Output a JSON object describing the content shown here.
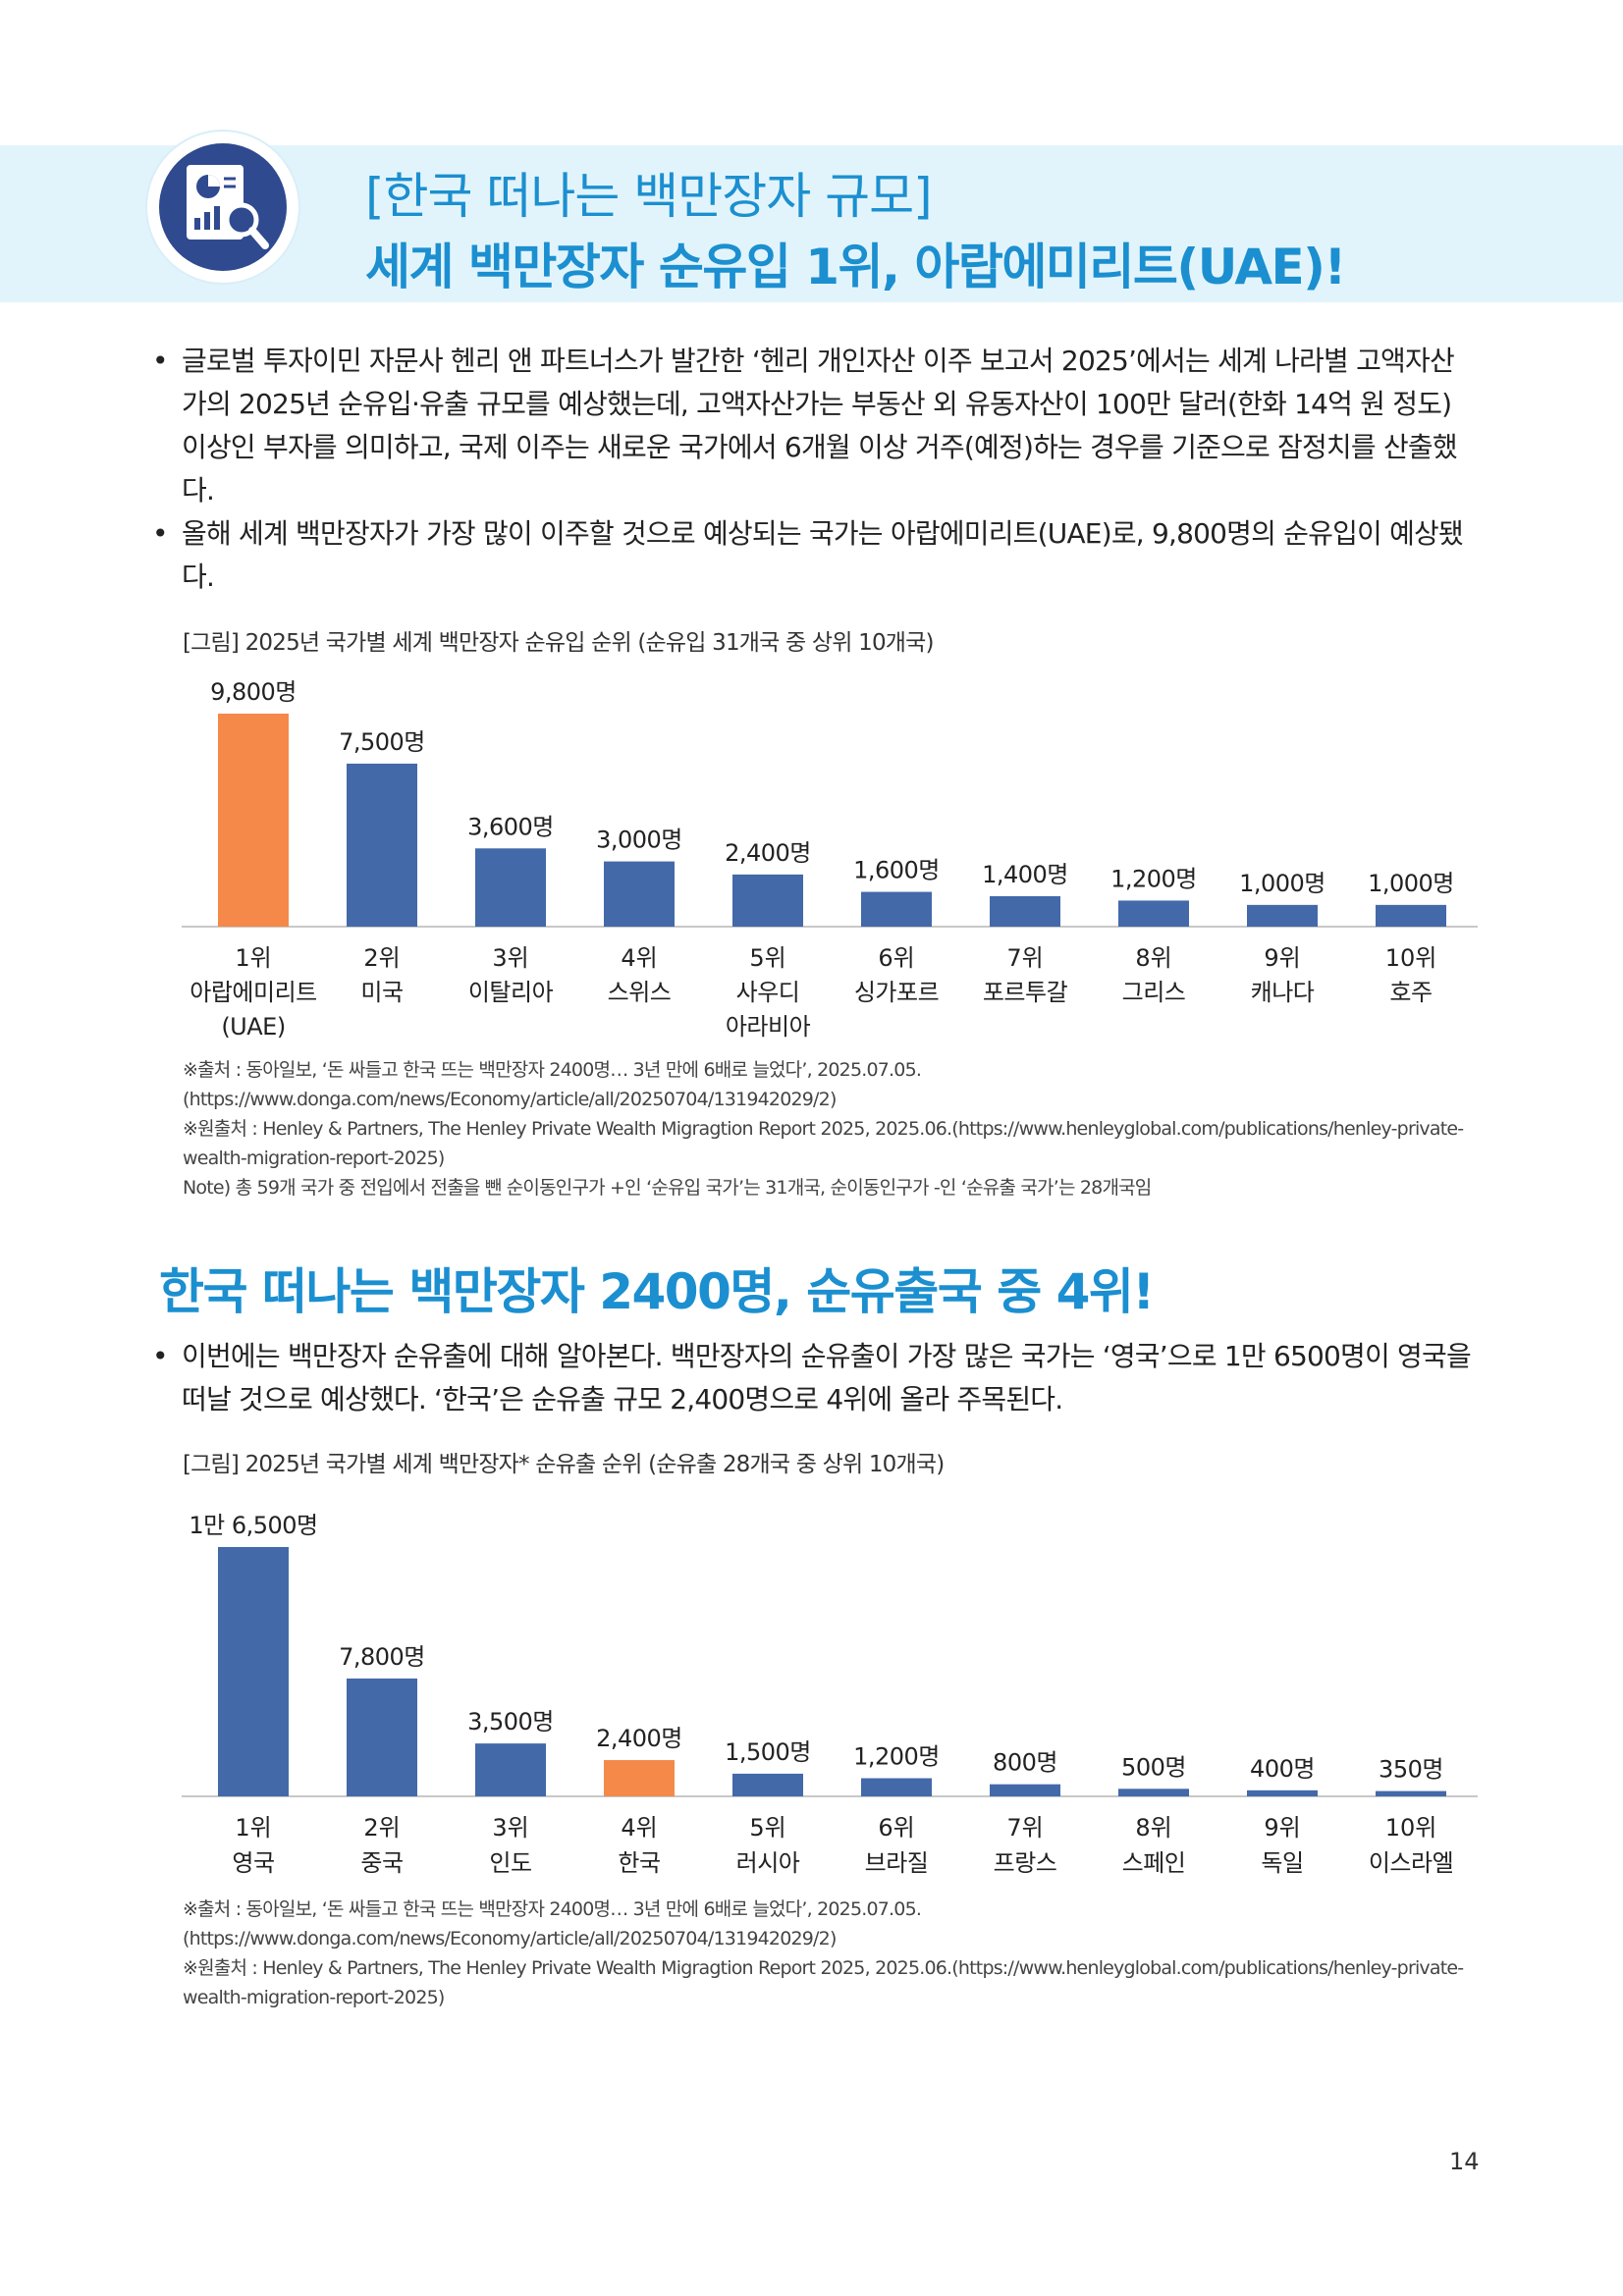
{
  "header": {
    "title_line1": "[한국 떠나는 백만장자 규모]",
    "title_line2": "세계 백만장자 순유입 1위, 아랍에미리트(UAE)!",
    "icon": "chart-magnifier-icon"
  },
  "bullets_top": [
    "글로벌 투자이민 자문사 헨리 앤 파트너스가 발간한 ‘헨리 개인자산 이주 보고서 2025’에서는 세계 나라별 고액자산가의 2025년 순유입·유출 규모를 예상했는데, 고액자산가는 부동산 외 유동자산이 100만 달러(한화 14억 원 정도) 이상인 부자를 의미하고, 국제 이주는 새로운 국가에서 6개월 이상 거주(예정)하는 경우를 기준으로 잠정치를 산출했다.",
    "올해 세계 백만장자가 가장 많이 이주할 것으로 예상되는 국가는 아랍에미리트(UAE)로, 9,800명의 순유입이 예상됐다."
  ],
  "chart1_caption": "[그림] 2025년 국가별 세계 백만장자 순유입 순위 (순유입 31개국 중 상위 10개국)",
  "chart1_sources": [
    "※출처 : 동아일보, ‘돈 싸들고 한국 뜨는 백만장자 2400명… 3년 만에 6배로 늘었다’, 2025.07.05. (https://www.donga.com/news/Economy/article/all/20250704/131942029/2)",
    "※원출처 : Henley & Partners, The Henley Private Wealth Migragtion Report 2025, 2025.06.(https://www.henleyglobal.com/publications/henley-private-wealth-migration-report-2025)",
    "Note) 총 59개 국가 중 전입에서 전출을 뺀 순이동인구가 +인 ‘순유입 국가’는 31개국, 순이동인구가 -인 ‘순유출 국가’는 28개국임"
  ],
  "section2_title": "한국 떠나는 백만장자 2400명, 순유출국 중 4위!",
  "bullets_bottom": [
    "이번에는 백만장자 순유출에 대해 알아본다. 백만장자의 순유출이 가장 많은 국가는 ‘영국’으로 1만 6500명이 영국을 떠날 것으로 예상했다. ‘한국’은 순유출 규모 2,400명으로 4위에 올라 주목된다."
  ],
  "chart2_caption": "[그림] 2025년 국가별 세계 백만장자* 순유출 순위 (순유출 28개국 중 상위 10개국)",
  "chart2_sources": [
    "※출처 : 동아일보, ‘돈 싸들고 한국 뜨는 백만장자 2400명… 3년 만에 6배로 늘었다’, 2025.07.05. (https://www.donga.com/news/Economy/article/all/20250704/131942029/2)",
    "※원출처 : Henley & Partners, The Henley Private Wealth Migragtion Report 2025, 2025.06.(https://www.henleyglobal.com/publications/henley-private-wealth-migration-report-2025)"
  ],
  "page_number": "14",
  "colors": {
    "accent": "#1b8fd0",
    "bar": "#4369a9",
    "highlight": "#f5894a",
    "banner": "#e2f4fb"
  },
  "chart_data": [
    {
      "type": "bar",
      "title": "[그림] 2025년 국가별 세계 백만장자 순유입 순위 (순유입 31개국 중 상위 10개국)",
      "ranks": [
        "1위",
        "2위",
        "3위",
        "4위",
        "5위",
        "6위",
        "7위",
        "8위",
        "9위",
        "10위"
      ],
      "categories": [
        "아랍에미리트 (UAE)",
        "미국",
        "이탈리아",
        "스위스",
        "사우디 아라비아",
        "싱가포르",
        "포르투갈",
        "그리스",
        "캐나다",
        "호주"
      ],
      "category_lines": [
        [
          "아랍에미리트",
          "(UAE)"
        ],
        [
          "미국"
        ],
        [
          "이탈리아"
        ],
        [
          "스위스"
        ],
        [
          "사우디",
          "아라비아"
        ],
        [
          "싱가포르"
        ],
        [
          "포르투갈"
        ],
        [
          "그리스"
        ],
        [
          "캐나다"
        ],
        [
          "호주"
        ]
      ],
      "values": [
        9800,
        7500,
        3600,
        3000,
        2400,
        1600,
        1400,
        1200,
        1000,
        1000
      ],
      "value_labels": [
        "9,800명",
        "7,500명",
        "3,600명",
        "3,000명",
        "2,400명",
        "1,600명",
        "1,400명",
        "1,200명",
        "1,000명",
        "1,000명"
      ],
      "highlight_index": 0,
      "grid": false,
      "legend": "none"
    },
    {
      "type": "bar",
      "title": "[그림] 2025년 국가별 세계 백만장자* 순유출 순위 (순유출 28개국 중 상위 10개국)",
      "ranks": [
        "1위",
        "2위",
        "3위",
        "4위",
        "5위",
        "6위",
        "7위",
        "8위",
        "9위",
        "10위"
      ],
      "categories": [
        "영국",
        "중국",
        "인도",
        "한국",
        "러시아",
        "브라질",
        "프랑스",
        "스페인",
        "독일",
        "이스라엘"
      ],
      "category_lines": [
        [
          "영국"
        ],
        [
          "중국"
        ],
        [
          "인도"
        ],
        [
          "한국"
        ],
        [
          "러시아"
        ],
        [
          "브라질"
        ],
        [
          "프랑스"
        ],
        [
          "스페인"
        ],
        [
          "독일"
        ],
        [
          "이스라엘"
        ]
      ],
      "values": [
        16500,
        7800,
        3500,
        2400,
        1500,
        1200,
        800,
        500,
        400,
        350
      ],
      "value_labels": [
        "1만 6,500명",
        "7,800명",
        "3,500명",
        "2,400명",
        "1,500명",
        "1,200명",
        "800명",
        "500명",
        "400명",
        "350명"
      ],
      "highlight_index": 3,
      "grid": false,
      "legend": "none"
    }
  ]
}
